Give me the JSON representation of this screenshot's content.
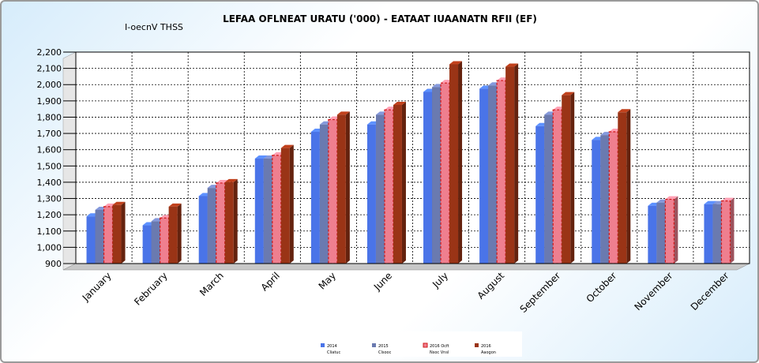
{
  "chart_data": {
    "type": "bar",
    "title": "LEFAA OFLNEAT URATU ('000) - EATAAT IUAANATN RFII (EF)",
    "subtitle": "I-oecnV THSS",
    "categories": [
      "January",
      "February",
      "March",
      "April",
      "May",
      "June",
      "July",
      "August",
      "September",
      "October",
      "November",
      "December"
    ],
    "ylim": [
      900,
      2200
    ],
    "ytick_step": 100,
    "ytick_labels": [
      "900",
      "1,000",
      "1,100",
      "1,200",
      "1,300",
      "1,400",
      "1,500",
      "1,600",
      "1,700",
      "1,800",
      "1,900",
      "2,000",
      "2,100",
      "2,200"
    ],
    "grid": true,
    "legend_position": "bottom",
    "series": [
      {
        "label_top": "2014",
        "label_bottom": "Cliatuc",
        "color": "#4a74e8",
        "values": [
          1190,
          1135,
          1315,
          1545,
          1710,
          1755,
          1955,
          1975,
          1745,
          1660,
          1255,
          1265
        ]
      },
      {
        "label_top": "2015",
        "label_bottom": "Clsooc",
        "color": "#6a7ab0",
        "values": [
          1230,
          1160,
          1365,
          1545,
          1755,
          1815,
          1985,
          1995,
          1815,
          1690,
          1275,
          1265
        ]
      },
      {
        "label_top": "2016 Ocft",
        "label_bottom": "Nsoc Vnsl",
        "color": "#ef7f8f",
        "values": [
          1250,
          1180,
          1395,
          1565,
          1785,
          1845,
          2010,
          2025,
          1845,
          1710,
          1295,
          1285
        ]
      },
      {
        "label_top": "2016",
        "label_bottom": "Aaogon",
        "color": "#9a3416",
        "values": [
          1260,
          1250,
          1400,
          1610,
          1815,
          1875,
          2125,
          2110,
          1935,
          1830,
          null,
          null
        ]
      }
    ]
  }
}
